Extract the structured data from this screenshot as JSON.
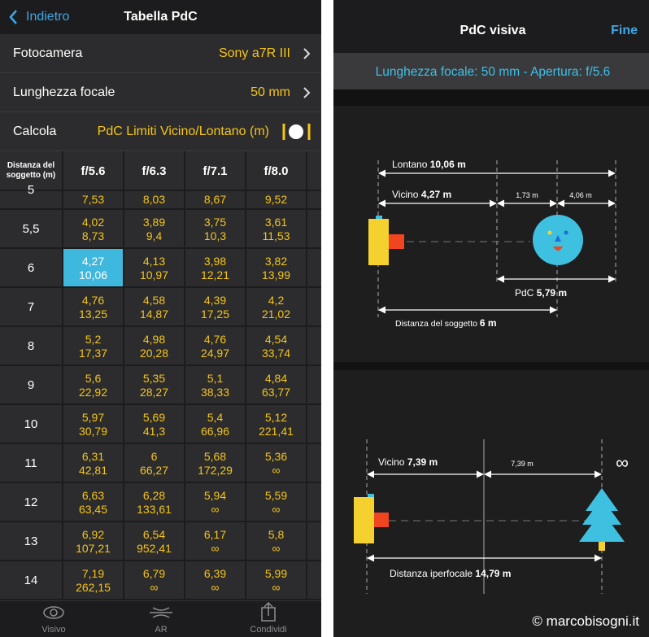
{
  "left_screen": {
    "nav": {
      "back": "Indietro",
      "title": "Tabella PdC"
    },
    "settings": [
      {
        "label": "Fotocamera",
        "value": "Sony a7R III"
      },
      {
        "label": "Lunghezza focale",
        "value": "50 mm"
      },
      {
        "label": "Calcola",
        "value": "PdC Limiti Vicino/Lontano (m)"
      }
    ],
    "table": {
      "header": {
        "distance": "Distanza del soggetto (m)",
        "columns": [
          "f/5.6",
          "f/6.3",
          "f/7.1",
          "f/8.0"
        ]
      },
      "rows": [
        {
          "distance": "5",
          "cells": [
            {
              "far": "7,53"
            },
            {
              "far": "8,03"
            },
            {
              "far": "8,67"
            },
            {
              "far": "9,52"
            }
          ]
        },
        {
          "distance": "5,5",
          "cells": [
            {
              "near": "4,02",
              "far": "8,73"
            },
            {
              "near": "3,89",
              "far": "9,4"
            },
            {
              "near": "3,75",
              "far": "10,3"
            },
            {
              "near": "3,61",
              "far": "11,53"
            }
          ]
        },
        {
          "distance": "6",
          "cells": [
            {
              "near": "4,27",
              "far": "10,06"
            },
            {
              "near": "4,13",
              "far": "10,97"
            },
            {
              "near": "3,98",
              "far": "12,21"
            },
            {
              "near": "3,82",
              "far": "13,99"
            }
          ]
        },
        {
          "distance": "7",
          "cells": [
            {
              "near": "4,76",
              "far": "13,25"
            },
            {
              "near": "4,58",
              "far": "14,87"
            },
            {
              "near": "4,39",
              "far": "17,25"
            },
            {
              "near": "4,2",
              "far": "21,02"
            }
          ]
        },
        {
          "distance": "8",
          "cells": [
            {
              "near": "5,2",
              "far": "17,37"
            },
            {
              "near": "4,98",
              "far": "20,28"
            },
            {
              "near": "4,76",
              "far": "24,97"
            },
            {
              "near": "4,54",
              "far": "33,74"
            }
          ]
        },
        {
          "distance": "9",
          "cells": [
            {
              "near": "5,6",
              "far": "22,92"
            },
            {
              "near": "5,35",
              "far": "28,27"
            },
            {
              "near": "5,1",
              "far": "38,33"
            },
            {
              "near": "4,84",
              "far": "63,77"
            }
          ]
        },
        {
          "distance": "10",
          "cells": [
            {
              "near": "5,97",
              "far": "30,79"
            },
            {
              "near": "5,69",
              "far": "41,3"
            },
            {
              "near": "5,4",
              "far": "66,96"
            },
            {
              "near": "5,12",
              "far": "221,41"
            }
          ]
        },
        {
          "distance": "11",
          "cells": [
            {
              "near": "6,31",
              "far": "42,81"
            },
            {
              "near": "6",
              "far": "66,27"
            },
            {
              "near": "5,68",
              "far": "172,29"
            },
            {
              "near": "5,36",
              "far": "∞"
            }
          ]
        },
        {
          "distance": "12",
          "cells": [
            {
              "near": "6,63",
              "far": "63,45"
            },
            {
              "near": "6,28",
              "far": "133,61"
            },
            {
              "near": "5,94",
              "far": "∞"
            },
            {
              "near": "5,59",
              "far": "∞"
            }
          ]
        },
        {
          "distance": "13",
          "cells": [
            {
              "near": "6,92",
              "far": "107,21"
            },
            {
              "near": "6,54",
              "far": "952,41"
            },
            {
              "near": "6,17",
              "far": "∞"
            },
            {
              "near": "5,8",
              "far": "∞"
            }
          ]
        },
        {
          "distance": "14",
          "cells": [
            {
              "near": "7,19",
              "far": "262,15"
            },
            {
              "near": "6,79",
              "far": "∞"
            },
            {
              "near": "6,39",
              "far": "∞"
            },
            {
              "near": "5,99",
              "far": "∞"
            }
          ]
        }
      ]
    },
    "tabs": [
      "Visivo",
      "AR",
      "Condividi"
    ]
  },
  "right_screen": {
    "nav": {
      "title": "PdC visiva",
      "done": "Fine"
    },
    "info_bar": "Lunghezza focale: 50 mm - Apertura: f/5.6",
    "dof_diagram": {
      "far": {
        "label": "Lontano",
        "value": "10,06 m"
      },
      "near": {
        "label": "Vicino",
        "value": "4,27 m"
      },
      "front": "1,73 m",
      "back": "4,06 m",
      "dof": {
        "label": "PdC",
        "value": "5,79 m"
      },
      "subject_distance": {
        "label": "Distanza del soggetto",
        "value": "6 m"
      }
    },
    "hyperfocal_diagram": {
      "near": {
        "label": "Vicino",
        "value": "7,39 m"
      },
      "back": "7,39 m",
      "infinity": "∞",
      "hyperfocal": {
        "label": "Distanza iperfocale",
        "value": "14,79 m"
      }
    },
    "watermark": "© marcobisogni.it"
  }
}
